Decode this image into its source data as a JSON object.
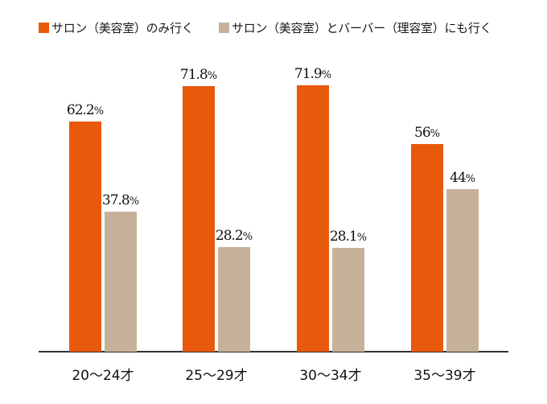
{
  "legend": {
    "items": [
      {
        "label": "サロン（美容室）のみ行く",
        "color": "#E8590C"
      },
      {
        "label": "サロン（美容室）とバーバー（理容室）にも行く",
        "color": "#C6B29A"
      }
    ]
  },
  "chart_data": {
    "type": "bar",
    "title": "",
    "xlabel": "",
    "ylabel": "",
    "ylim": [
      0,
      100
    ],
    "grid": false,
    "legend_position": "top",
    "categories": [
      "20〜24才",
      "25〜29才",
      "30〜34才",
      "35〜39才"
    ],
    "series": [
      {
        "name": "サロン（美容室）のみ行く",
        "color": "#E8590C",
        "values": [
          62.2,
          71.8,
          71.9,
          56
        ]
      },
      {
        "name": "サロン（美容室）とバーバー（理容室）にも行く",
        "color": "#C6B29A",
        "values": [
          37.8,
          28.2,
          28.1,
          44
        ]
      }
    ],
    "value_labels": [
      [
        "62.2",
        "71.8",
        "71.9",
        "56"
      ],
      [
        "37.8",
        "28.2",
        "28.1",
        "44"
      ]
    ],
    "unit": "%"
  }
}
